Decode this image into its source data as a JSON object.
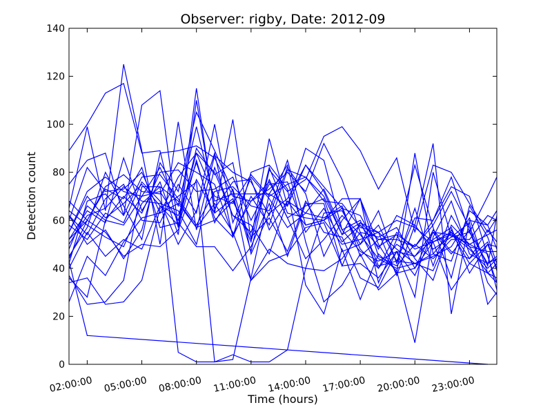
{
  "chart_data": {
    "type": "line",
    "title": "Observer: rigby, Date: 2012-09",
    "xlabel": "Time (hours)",
    "ylabel": "Detection count",
    "xlim": [
      1,
      24.5
    ],
    "ylim": [
      0,
      140
    ],
    "x_ticks": [
      2,
      5,
      8,
      11,
      14,
      17,
      20,
      23
    ],
    "x_tick_labels": [
      "02:00:00",
      "05:00:00",
      "08:00:00",
      "11:00:00",
      "14:00:00",
      "17:00:00",
      "20:00:00",
      "23:00:00"
    ],
    "y_ticks": [
      0,
      20,
      40,
      60,
      80,
      100,
      120,
      140
    ],
    "grid": false,
    "legend": "none",
    "line_color": "#0000ff",
    "x": [
      1,
      2,
      3,
      4,
      5,
      6,
      7,
      8,
      9,
      10,
      11,
      12,
      13,
      14,
      15,
      16,
      17,
      18,
      19,
      20,
      21,
      22,
      23,
      24,
      24.5
    ],
    "series": [
      {
        "values": [
          89,
          100,
          113,
          117,
          88,
          89,
          57,
          115,
          63,
          102,
          52,
          94,
          66,
          83,
          72,
          54,
          69,
          34,
          52,
          49,
          60,
          78,
          55,
          70,
          78
        ]
      },
      {
        "values": [
          75,
          85,
          88,
          62,
          108,
          114,
          57,
          85,
          59,
          73,
          47,
          81,
          72,
          77,
          95,
          99,
          89,
          73,
          86,
          55,
          83,
          80,
          67,
          55,
          61
        ]
      },
      {
        "values": [
          65,
          99,
          64,
          125,
          89,
          50,
          101,
          56,
          87,
          80,
          76,
          62,
          82,
          71,
          45,
          60,
          69,
          50,
          38,
          88,
          46,
          43,
          64,
          58,
          64
        ]
      },
      {
        "values": [
          60,
          82,
          72,
          73,
          80,
          63,
          78,
          88,
          70,
          67,
          79,
          70,
          75,
          78,
          68,
          67,
          57,
          55,
          60,
          57,
          51,
          54,
          48,
          40,
          44
        ]
      },
      {
        "values": [
          55,
          70,
          61,
          67,
          75,
          66,
          58,
          90,
          79,
          84,
          46,
          63,
          69,
          83,
          74,
          65,
          62,
          48,
          62,
          58,
          92,
          21,
          60,
          58,
          48
        ]
      },
      {
        "values": [
          68,
          60,
          74,
          79,
          72,
          71,
          84,
          80,
          75,
          54,
          68,
          76,
          61,
          66,
          69,
          47,
          50,
          64,
          42,
          65,
          41,
          62,
          49,
          38,
          36
        ]
      },
      {
        "values": [
          52,
          64,
          59,
          86,
          64,
          76,
          54,
          110,
          65,
          76,
          77,
          56,
          68,
          63,
          61,
          66,
          45,
          52,
          54,
          40,
          56,
          47,
          44,
          56,
          51
        ]
      },
      {
        "values": [
          45,
          57,
          80,
          66,
          52,
          88,
          89,
          91,
          86,
          70,
          68,
          73,
          80,
          72,
          92,
          77,
          55,
          53,
          57,
          44,
          35,
          58,
          50,
          46,
          31
        ]
      },
      {
        "values": [
          42,
          68,
          71,
          62,
          78,
          79,
          69,
          58,
          72,
          74,
          66,
          64,
          85,
          58,
          60,
          69,
          69,
          45,
          41,
          50,
          44,
          52,
          52,
          62,
          60
        ]
      },
      {
        "values": [
          62,
          54,
          69,
          75,
          60,
          59,
          75,
          63,
          100,
          59,
          78,
          69,
          57,
          63,
          73,
          56,
          60,
          41,
          43,
          61,
          60,
          74,
          70,
          45,
          34
        ]
      },
      {
        "values": [
          36,
          28,
          60,
          58,
          70,
          82,
          66,
          99,
          68,
          71,
          71,
          71,
          66,
          90,
          85,
          56,
          47,
          43,
          47,
          28,
          80,
          53,
          55,
          42,
          45
        ]
      },
      {
        "values": [
          58,
          52,
          63,
          59,
          76,
          68,
          50,
          64,
          88,
          53,
          70,
          58,
          81,
          78,
          70,
          54,
          59,
          52,
          52,
          83,
          57,
          36,
          66,
          53,
          42
        ]
      },
      {
        "values": [
          48,
          66,
          60,
          70,
          63,
          80,
          81,
          72,
          73,
          78,
          60,
          75,
          76,
          55,
          65,
          51,
          58,
          49,
          54,
          49,
          58,
          72,
          57,
          41,
          62
        ]
      },
      {
        "values": [
          52,
          60,
          55,
          45,
          50,
          49,
          56,
          77,
          63,
          69,
          51,
          82,
          63,
          61,
          60,
          50,
          52,
          55,
          48,
          42,
          46,
          55,
          49,
          47,
          47
        ]
      },
      {
        "values": [
          64,
          58,
          53,
          49,
          67,
          74,
          68,
          57,
          67,
          55,
          35,
          48,
          42,
          40,
          63,
          64,
          50,
          58,
          43,
          42,
          45,
          49,
          61,
          38,
          42
        ]
      },
      {
        "values": [
          50,
          62,
          65,
          74,
          68,
          67,
          64,
          50,
          82,
          62,
          58,
          46,
          68,
          58,
          60,
          65,
          48,
          40,
          55,
          48,
          51,
          55,
          42,
          50,
          49
        ]
      },
      {
        "values": [
          55,
          72,
          78,
          72,
          70,
          72,
          60,
          88,
          80,
          62,
          55,
          77,
          61,
          44,
          52,
          62,
          54,
          44,
          40,
          42,
          39,
          56,
          44,
          51,
          39
        ]
      },
      {
        "values": [
          44,
          60,
          73,
          69,
          82,
          57,
          59,
          49,
          49,
          39,
          49,
          67,
          45,
          67,
          67,
          41,
          59,
          55,
          37,
          58,
          48,
          53,
          59,
          25,
          30
        ]
      },
      {
        "values": [
          62,
          50,
          56,
          44,
          56,
          84,
          72,
          105,
          89,
          72,
          35,
          43,
          46,
          57,
          59,
          41,
          42,
          36,
          47,
          37,
          55,
          46,
          56,
          34,
          29
        ]
      },
      {
        "values": [
          26,
          45,
          37,
          51,
          61,
          63,
          67,
          57,
          60,
          68,
          53,
          61,
          47,
          68,
          55,
          53,
          36,
          32,
          47,
          45,
          52,
          57,
          38,
          50,
          40
        ]
      },
      {
        "values": [
          40,
          55,
          45,
          52,
          48,
          66,
          62,
          84,
          61,
          53,
          80,
          83,
          73,
          33,
          21,
          48,
          27,
          46,
          39,
          9,
          53,
          68,
          46,
          42,
          44
        ]
      },
      {
        "values": [
          37,
          25,
          26,
          35,
          74,
          74,
          5,
          1,
          1,
          2,
          36,
          71,
          83,
          51,
          26,
          33,
          46,
          31,
          38,
          40,
          51,
          31,
          42,
          38,
          34
        ]
      },
      {
        "values": [
          34,
          36,
          25,
          26,
          35,
          65,
          70,
          76,
          1,
          4,
          1,
          1,
          6,
          40,
          39,
          44,
          55,
          40,
          50,
          45,
          55,
          54,
          50,
          54,
          56
        ]
      },
      {
        "values": [
          43,
          12,
          null,
          null,
          null,
          null,
          null,
          null,
          null,
          null,
          null,
          null,
          null,
          null,
          null,
          null,
          null,
          null,
          null,
          null,
          null,
          null,
          null,
          0,
          null
        ]
      }
    ]
  }
}
